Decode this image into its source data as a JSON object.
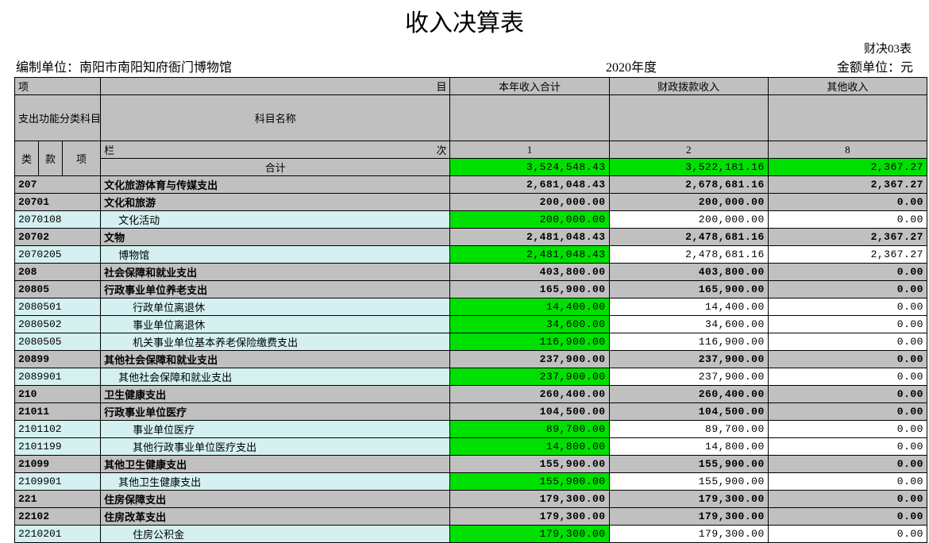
{
  "title": "收入决算表",
  "form_label": "财决03表",
  "org_label": "编制单位：",
  "org_name": "南阳市南阳知府衙门博物馆",
  "year": "2020年度",
  "amount_unit": "金额单位：元",
  "header": {
    "xiang": "项",
    "mu": "目",
    "code_group": "支出功能分类科目编码",
    "subject_name": "科目名称",
    "lan": "栏",
    "ci": "次",
    "lei": "类",
    "kuan": "款",
    "xiang2": "项",
    "col_total": "本年收入合计",
    "col_fiscal": "财政拨款收入",
    "col_other": "其他收入",
    "no1": "1",
    "no2": "2",
    "no8": "8",
    "heji": "合计"
  },
  "totals": {
    "c1": "3,524,548.43",
    "c2": "3,522,181.16",
    "c3": "2,367.27"
  },
  "rows": [
    {
      "code": "207",
      "name": "文化旅游体育与传媒支出",
      "c1": "2,681,048.43",
      "c2": "2,678,681.16",
      "c3": "2,367.27",
      "style": "grey",
      "bold": true,
      "indent": 0,
      "c1bg": "grey",
      "c2bg": "grey",
      "c3bg": "grey"
    },
    {
      "code": "20701",
      "name": "文化和旅游",
      "c1": "200,000.00",
      "c2": "200,000.00",
      "c3": "0.00",
      "style": "grey",
      "bold": true,
      "indent": 0,
      "c1bg": "grey",
      "c2bg": "grey",
      "c3bg": "grey"
    },
    {
      "code": "2070108",
      "name": "文化活动",
      "c1": "200,000.00",
      "c2": "200,000.00",
      "c3": "0.00",
      "style": "cyan",
      "bold": false,
      "indent": 1,
      "c1bg": "green",
      "c2bg": "white",
      "c3bg": "white"
    },
    {
      "code": "20702",
      "name": "文物",
      "c1": "2,481,048.43",
      "c2": "2,478,681.16",
      "c3": "2,367.27",
      "style": "grey",
      "bold": true,
      "indent": 0,
      "c1bg": "grey",
      "c2bg": "grey",
      "c3bg": "grey"
    },
    {
      "code": "2070205",
      "name": "博物馆",
      "c1": "2,481,048.43",
      "c2": "2,478,681.16",
      "c3": "2,367.27",
      "style": "cyan",
      "bold": false,
      "indent": 1,
      "c1bg": "green",
      "c2bg": "white",
      "c3bg": "white"
    },
    {
      "code": "208",
      "name": "社会保障和就业支出",
      "c1": "403,800.00",
      "c2": "403,800.00",
      "c3": "0.00",
      "style": "grey",
      "bold": true,
      "indent": 0,
      "c1bg": "grey",
      "c2bg": "grey",
      "c3bg": "grey"
    },
    {
      "code": "20805",
      "name": "行政事业单位养老支出",
      "c1": "165,900.00",
      "c2": "165,900.00",
      "c3": "0.00",
      "style": "grey",
      "bold": true,
      "indent": 0,
      "c1bg": "grey",
      "c2bg": "grey",
      "c3bg": "grey"
    },
    {
      "code": "2080501",
      "name": "行政单位离退休",
      "c1": "14,400.00",
      "c2": "14,400.00",
      "c3": "0.00",
      "style": "cyan",
      "bold": false,
      "indent": 2,
      "c1bg": "green",
      "c2bg": "white",
      "c3bg": "white"
    },
    {
      "code": "2080502",
      "name": "事业单位离退休",
      "c1": "34,600.00",
      "c2": "34,600.00",
      "c3": "0.00",
      "style": "cyan",
      "bold": false,
      "indent": 2,
      "c1bg": "green",
      "c2bg": "white",
      "c3bg": "white"
    },
    {
      "code": "2080505",
      "name": "机关事业单位基本养老保险缴费支出",
      "c1": "116,900.00",
      "c2": "116,900.00",
      "c3": "0.00",
      "style": "cyan",
      "bold": false,
      "indent": 2,
      "c1bg": "green",
      "c2bg": "white",
      "c3bg": "white"
    },
    {
      "code": "20899",
      "name": "其他社会保障和就业支出",
      "c1": "237,900.00",
      "c2": "237,900.00",
      "c3": "0.00",
      "style": "grey",
      "bold": true,
      "indent": 0,
      "c1bg": "grey",
      "c2bg": "grey",
      "c3bg": "grey"
    },
    {
      "code": "2089901",
      "name": "其他社会保障和就业支出",
      "c1": "237,900.00",
      "c2": "237,900.00",
      "c3": "0.00",
      "style": "cyan",
      "bold": false,
      "indent": 1,
      "c1bg": "green",
      "c2bg": "white",
      "c3bg": "white"
    },
    {
      "code": "210",
      "name": "卫生健康支出",
      "c1": "260,400.00",
      "c2": "260,400.00",
      "c3": "0.00",
      "style": "grey",
      "bold": true,
      "indent": 0,
      "c1bg": "grey",
      "c2bg": "grey",
      "c3bg": "grey"
    },
    {
      "code": "21011",
      "name": "行政事业单位医疗",
      "c1": "104,500.00",
      "c2": "104,500.00",
      "c3": "0.00",
      "style": "grey",
      "bold": true,
      "indent": 0,
      "c1bg": "grey",
      "c2bg": "grey",
      "c3bg": "grey"
    },
    {
      "code": "2101102",
      "name": "事业单位医疗",
      "c1": "89,700.00",
      "c2": "89,700.00",
      "c3": "0.00",
      "style": "cyan",
      "bold": false,
      "indent": 2,
      "c1bg": "green",
      "c2bg": "white",
      "c3bg": "white"
    },
    {
      "code": "2101199",
      "name": "其他行政事业单位医疗支出",
      "c1": "14,800.00",
      "c2": "14,800.00",
      "c3": "0.00",
      "style": "cyan",
      "bold": false,
      "indent": 2,
      "c1bg": "green",
      "c2bg": "white",
      "c3bg": "white"
    },
    {
      "code": "21099",
      "name": "其他卫生健康支出",
      "c1": "155,900.00",
      "c2": "155,900.00",
      "c3": "0.00",
      "style": "grey",
      "bold": true,
      "indent": 0,
      "c1bg": "grey",
      "c2bg": "grey",
      "c3bg": "grey"
    },
    {
      "code": "2109901",
      "name": "其他卫生健康支出",
      "c1": "155,900.00",
      "c2": "155,900.00",
      "c3": "0.00",
      "style": "cyan",
      "bold": false,
      "indent": 1,
      "c1bg": "green",
      "c2bg": "white",
      "c3bg": "white"
    },
    {
      "code": "221",
      "name": "住房保障支出",
      "c1": "179,300.00",
      "c2": "179,300.00",
      "c3": "0.00",
      "style": "grey",
      "bold": true,
      "indent": 0,
      "c1bg": "grey",
      "c2bg": "grey",
      "c3bg": "grey"
    },
    {
      "code": "22102",
      "name": "住房改革支出",
      "c1": "179,300.00",
      "c2": "179,300.00",
      "c3": "0.00",
      "style": "grey",
      "bold": true,
      "indent": 0,
      "c1bg": "grey",
      "c2bg": "grey",
      "c3bg": "grey"
    },
    {
      "code": "2210201",
      "name": "住房公积金",
      "c1": "179,300.00",
      "c2": "179,300.00",
      "c3": "0.00",
      "style": "cyan",
      "bold": false,
      "indent": 2,
      "c1bg": "green",
      "c2bg": "white",
      "c3bg": "white"
    }
  ]
}
